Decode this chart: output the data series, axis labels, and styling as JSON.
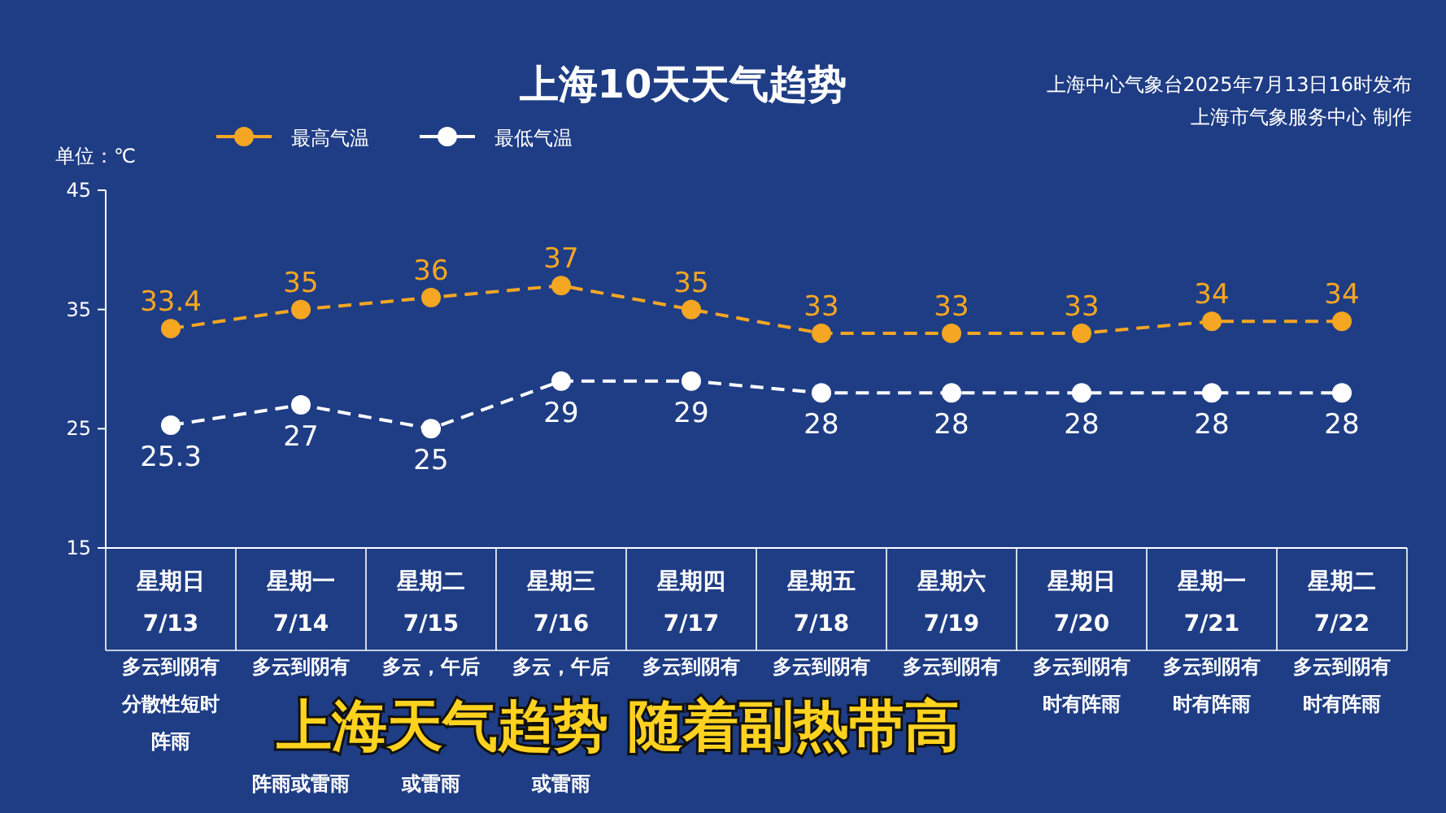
{
  "chart_data": {
    "type": "line",
    "title": "上海10天天气趋势",
    "subtitle": "上海中心气象台2025年7月13日16时发布",
    "ylabel": "单位：℃",
    "categories": [
      "星期日\n7/13",
      "星期一\n7/14",
      "星期二\n7/15",
      "星期三\n7/16",
      "星期四\n7/17",
      "星期五\n7/18",
      "星期六\n7/19",
      "星期日\n7/20",
      "星期一\n7/21",
      "星期二\n7/22"
    ],
    "series": [
      {
        "name": "最高气温",
        "color": "#f5a623",
        "values": [
          33.4,
          35,
          36,
          37,
          35,
          33,
          33,
          33,
          34,
          34
        ]
      },
      {
        "name": "最低气温",
        "color": "#ffffff",
        "values": [
          25.3,
          27,
          25,
          29,
          29,
          28,
          28,
          28,
          28,
          28
        ]
      }
    ],
    "ylim": [
      15,
      45
    ],
    "yticks": [
      15,
      25,
      35,
      45
    ],
    "data_labels": true,
    "legend": "top left",
    "marker": "circle",
    "line_style": "dashed",
    "grid": false,
    "annotations": [
      "上海市气象服务中心 制作",
      "多云到阴有分散性短时阵雨",
      "多云到阴有",
      "多云，午后",
      "多云，午后",
      "多云到阴有",
      "多云到阴有",
      "多云到阴有",
      "多云到阴有时有阵雨",
      "多云到阴有时有阵雨",
      "多云到阴有时有阵雨",
      "阵雨或雷雨",
      "或雷雨",
      "或雷雨",
      "上海天气趋势 随着副热带高"
    ]
  }
}
